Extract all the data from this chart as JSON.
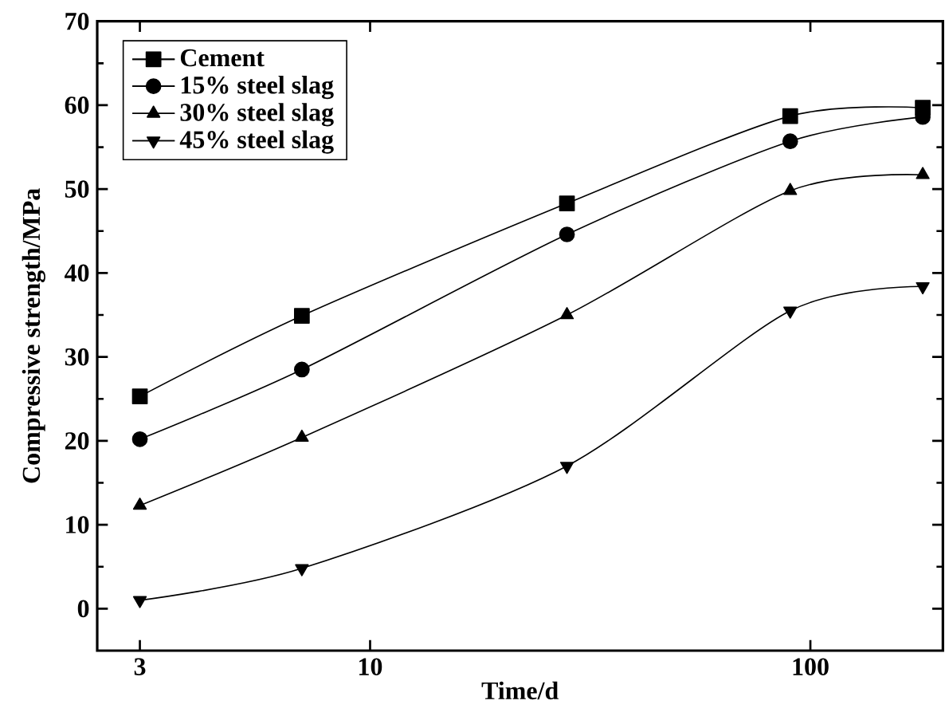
{
  "chart_data": {
    "type": "line",
    "xlabel": "Time/d",
    "ylabel": "Compressive strength/MPa",
    "x": [
      3,
      7,
      28,
      90,
      180
    ],
    "series": [
      {
        "name": "Cement",
        "color": "#000000",
        "marker": "square",
        "values": [
          25.3,
          34.9,
          48.3,
          58.7,
          59.7
        ]
      },
      {
        "name": "15% steel slag",
        "color": "#000000",
        "marker": "circle",
        "values": [
          20.2,
          28.5,
          44.6,
          55.7,
          58.6
        ]
      },
      {
        "name": "30% steel slag",
        "color": "#000000",
        "marker": "triangle",
        "values": [
          12.3,
          20.4,
          35.0,
          49.8,
          51.7
        ]
      },
      {
        "name": "45% steel slag",
        "color": "#000000",
        "marker": "triangle-down",
        "values": [
          1.0,
          4.8,
          17.0,
          35.5,
          38.4
        ]
      }
    ],
    "log": "x",
    "xlim": [
      2.4,
      200
    ],
    "xticks": [
      3,
      10,
      100
    ],
    "ylim": [
      -5,
      70
    ],
    "yticks": [
      0,
      10,
      20,
      30,
      40,
      50,
      60,
      70
    ],
    "grid": false,
    "legend": "top left",
    "line_style": "solid"
  }
}
